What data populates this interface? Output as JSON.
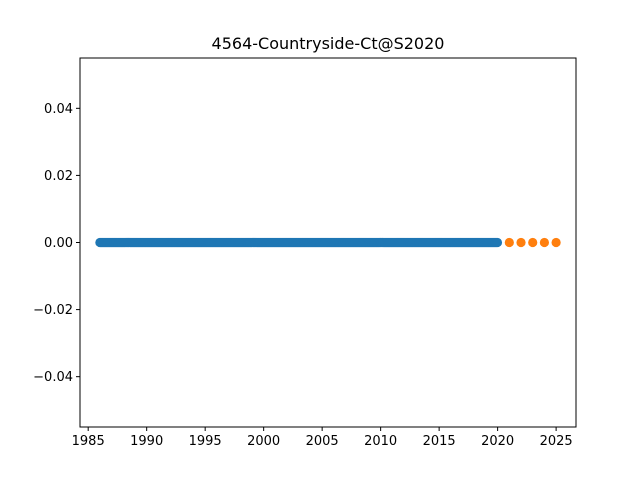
{
  "chart_data": {
    "type": "scatter",
    "title": "4564-Countryside-Ct@S2020",
    "xlabel": "",
    "ylabel": "",
    "xlim": [
      1984.3,
      2026.7
    ],
    "ylim": [
      -0.055,
      0.055
    ],
    "grid": false,
    "x_ticks": [
      1985,
      1990,
      1995,
      2000,
      2005,
      2010,
      2015,
      2020,
      2025
    ],
    "y_ticks": [
      -0.04,
      -0.02,
      0.0,
      0.02,
      0.04
    ],
    "x_tick_labels": [
      "1985",
      "1990",
      "1995",
      "2000",
      "2005",
      "2010",
      "2015",
      "2020",
      "2025"
    ],
    "y_tick_labels": [
      "−0.04",
      "−0.02",
      "0.00",
      "0.02",
      "0.04"
    ],
    "series": [
      {
        "color": "#1f77b4",
        "x_range": [
          1986.0,
          2020.0
        ],
        "x_step": 0.0833,
        "y": 0
      },
      {
        "color": "#ff7f0e",
        "x": [
          2021,
          2022,
          2023,
          2024,
          2025
        ],
        "y": [
          0,
          0,
          0,
          0,
          0
        ]
      }
    ]
  }
}
